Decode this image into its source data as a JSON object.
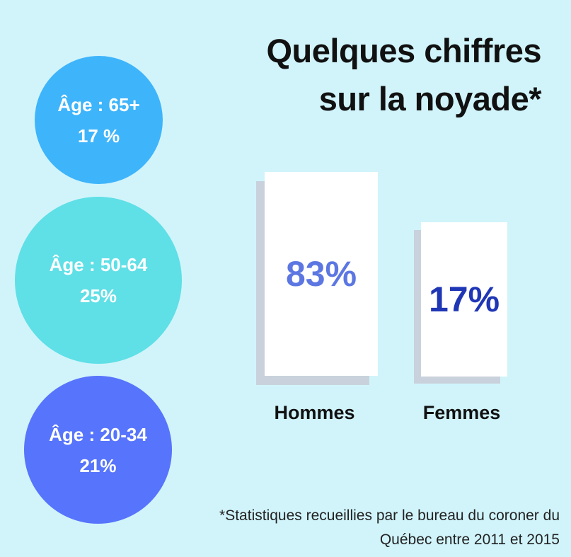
{
  "title": {
    "line1": "Quelques chiffres",
    "line2": "sur la noyade*"
  },
  "age_groups": [
    {
      "label": "Âge : 65+",
      "value": "17 %",
      "color": "#3eb4fb"
    },
    {
      "label": "Âge : 50-64",
      "value": "25%",
      "color": "#5fdfe6"
    },
    {
      "label": "Âge : 20-34",
      "value": "21%",
      "color": "#5774fc"
    }
  ],
  "gender": [
    {
      "label": "Hommes",
      "value": "83%",
      "color": "#5c77e2"
    },
    {
      "label": "Femmes",
      "value": "17%",
      "color": "#1f36b5"
    }
  ],
  "footnote": {
    "line1": "*Statistiques recueillies par le bureau du coroner du",
    "line2": "Québec entre 2011 et 2015"
  }
}
